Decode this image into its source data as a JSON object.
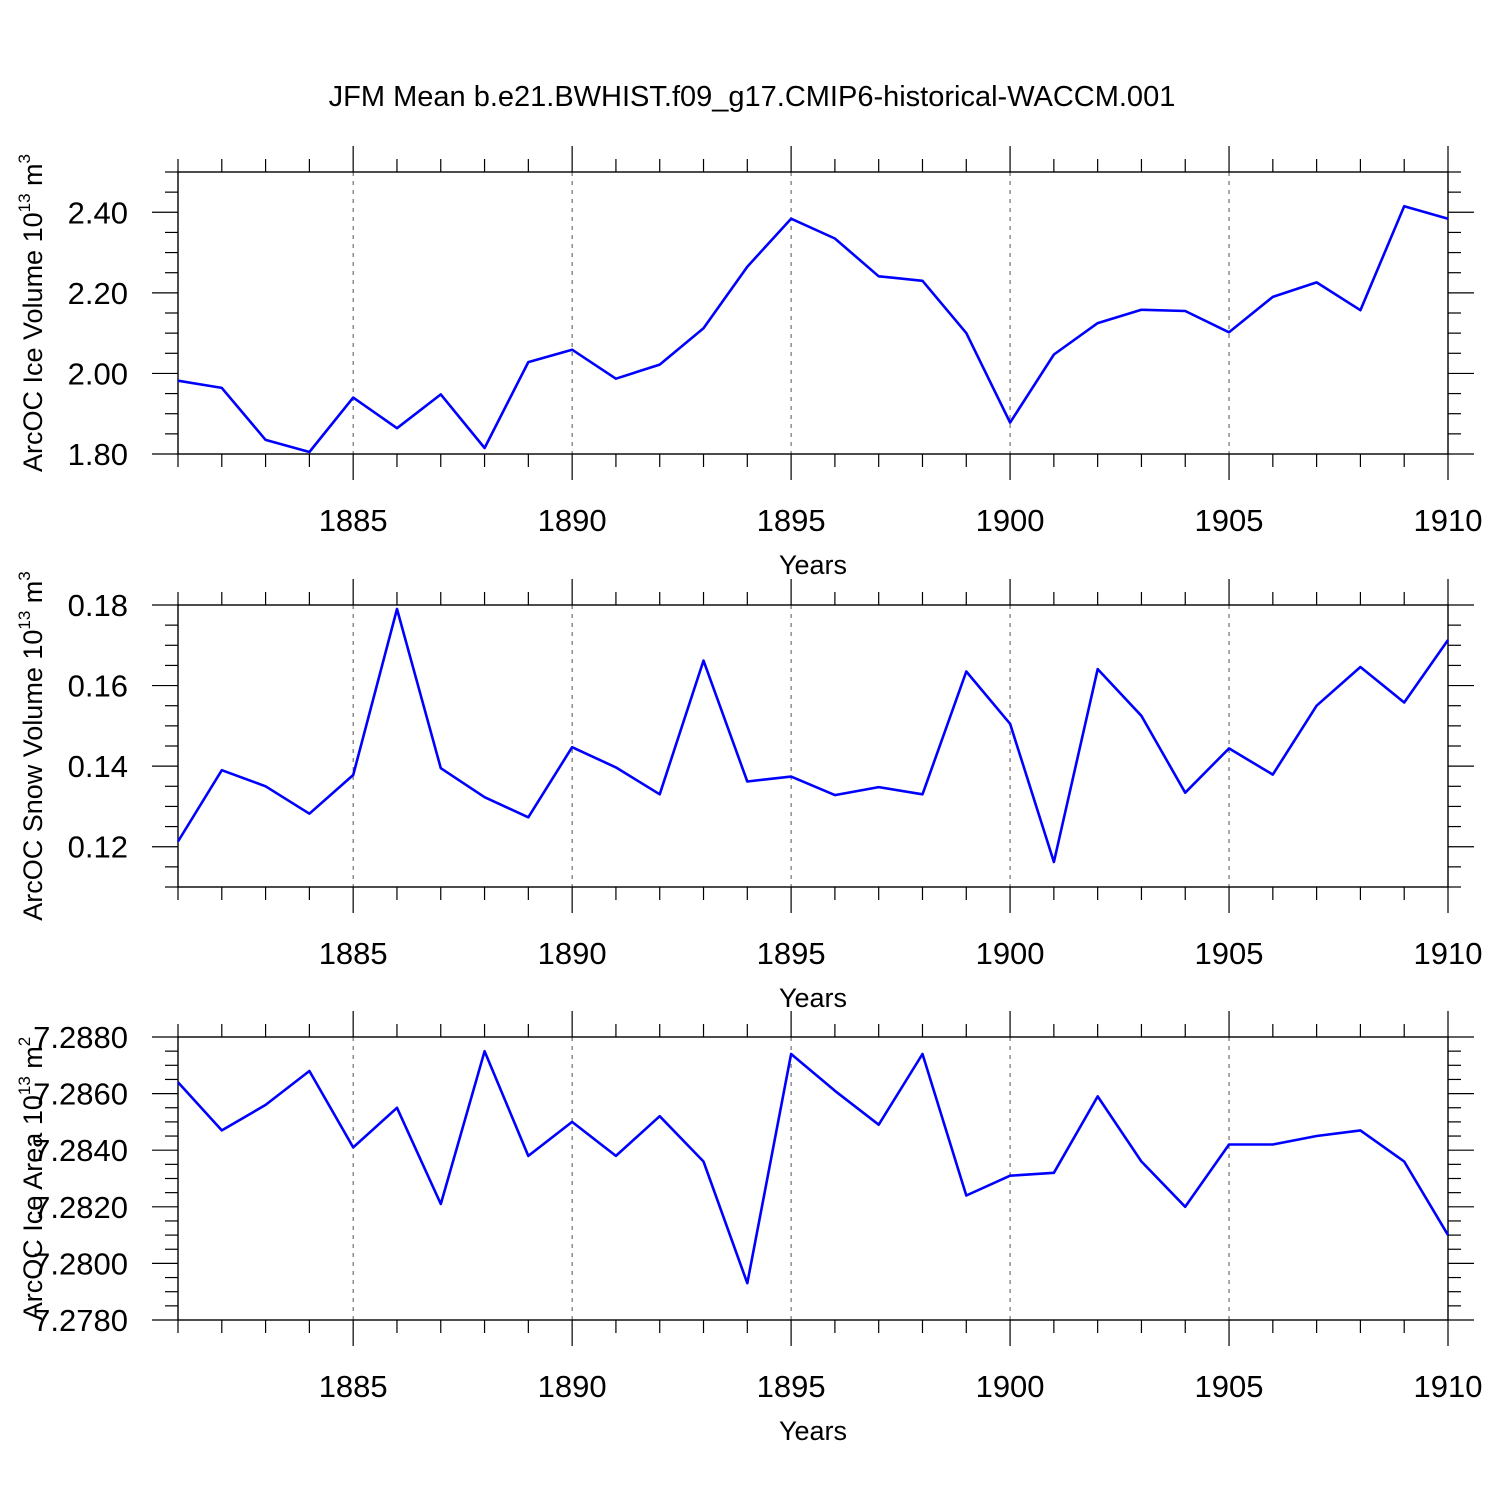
{
  "chart_data": {
    "type": "line",
    "title": "JFM Mean b.e21.BWHIST.f09_g17.CMIP6-historical-WACCM.001",
    "series_color": "#0000ff",
    "panels": [
      {
        "name": "ice-volume",
        "ylabel_main": "ArcOC Ice Volume 10",
        "ylabel_exp": "13",
        "ylabel_unit": " m",
        "ylabel_unit_exp": "3",
        "xlabel": "Years",
        "xlim": [
          1881,
          1910
        ],
        "ylim": [
          1.8,
          2.5
        ],
        "yticks": [
          1.8,
          2.0,
          2.2,
          2.4
        ],
        "ytick_labels": [
          "1.80",
          "2.00",
          "2.20",
          "2.40"
        ],
        "yminor_step": 0.05,
        "xticks": [
          1885,
          1890,
          1895,
          1900,
          1905,
          1910
        ],
        "xtick_labels": [
          "1885",
          "1890",
          "1895",
          "1900",
          "1905",
          "1910"
        ],
        "x": [
          1881,
          1882,
          1883,
          1884,
          1885,
          1886,
          1887,
          1888,
          1889,
          1890,
          1891,
          1892,
          1893,
          1894,
          1895,
          1896,
          1897,
          1898,
          1899,
          1900,
          1901,
          1902,
          1903,
          1904,
          1905,
          1906,
          1907,
          1908,
          1909,
          1910
        ],
        "values": [
          1.982,
          1.964,
          1.835,
          1.805,
          1.94,
          1.864,
          1.948,
          1.815,
          2.028,
          2.059,
          1.987,
          2.022,
          2.112,
          2.265,
          2.384,
          2.335,
          2.241,
          2.23,
          2.1,
          1.878,
          2.047,
          2.125,
          2.158,
          2.155,
          2.102,
          2.19,
          2.226,
          2.157,
          2.415,
          2.384
        ]
      },
      {
        "name": "snow-volume",
        "ylabel_main": "ArcOC Snow Volume 10",
        "ylabel_exp": "13",
        "ylabel_unit": " m",
        "ylabel_unit_exp": "3",
        "xlabel": "Years",
        "xlim": [
          1881,
          1910
        ],
        "ylim": [
          0.11,
          0.18
        ],
        "yticks": [
          0.12,
          0.14,
          0.16,
          0.18
        ],
        "ytick_labels": [
          "0.12",
          "0.14",
          "0.16",
          "0.18"
        ],
        "yminor_step": 0.005,
        "xticks": [
          1885,
          1890,
          1895,
          1900,
          1905,
          1910
        ],
        "xtick_labels": [
          "1885",
          "1890",
          "1895",
          "1900",
          "1905",
          "1910"
        ],
        "x": [
          1881,
          1882,
          1883,
          1884,
          1885,
          1886,
          1887,
          1888,
          1889,
          1890,
          1891,
          1892,
          1893,
          1894,
          1895,
          1896,
          1897,
          1898,
          1899,
          1900,
          1901,
          1902,
          1903,
          1904,
          1905,
          1906,
          1907,
          1908,
          1909,
          1910
        ],
        "values": [
          0.1213,
          0.139,
          0.135,
          0.1282,
          0.1378,
          0.179,
          0.1395,
          0.1323,
          0.1273,
          0.1447,
          0.1397,
          0.133,
          0.1662,
          0.1362,
          0.1374,
          0.1328,
          0.1348,
          0.133,
          0.1635,
          0.1505,
          0.1162,
          0.1641,
          0.1525,
          0.1334,
          0.1444,
          0.1379,
          0.155,
          0.1646,
          0.1558,
          0.1713
        ]
      },
      {
        "name": "ice-area",
        "ylabel_main": "ArcOC Ice Area 10",
        "ylabel_exp": "13",
        "ylabel_unit": " m",
        "ylabel_unit_exp": "2",
        "xlabel": "Years",
        "xlim": [
          1881,
          1910
        ],
        "ylim": [
          7.278,
          7.288
        ],
        "yticks": [
          7.278,
          7.28,
          7.282,
          7.284,
          7.286,
          7.288
        ],
        "ytick_labels": [
          "7.2780",
          "7.2800",
          "7.2820",
          "7.2840",
          "7.2860",
          "7.2880"
        ],
        "yminor_step": 0.0005,
        "xticks": [
          1885,
          1890,
          1895,
          1900,
          1905,
          1910
        ],
        "xtick_labels": [
          "1885",
          "1890",
          "1895",
          "1900",
          "1905",
          "1910"
        ],
        "x": [
          1881,
          1882,
          1883,
          1884,
          1885,
          1886,
          1887,
          1888,
          1889,
          1890,
          1891,
          1892,
          1893,
          1894,
          1895,
          1896,
          1897,
          1898,
          1899,
          1900,
          1901,
          1902,
          1903,
          1904,
          1905,
          1906,
          1907,
          1908,
          1909,
          1910
        ],
        "values": [
          7.2864,
          7.2847,
          7.2856,
          7.2868,
          7.2841,
          7.2855,
          7.2821,
          7.2875,
          7.2838,
          7.285,
          7.2838,
          7.2852,
          7.2836,
          7.2793,
          7.2874,
          7.2861,
          7.2849,
          7.2874,
          7.2824,
          7.2831,
          7.2832,
          7.2859,
          7.2836,
          7.282,
          7.2842,
          7.2842,
          7.2845,
          7.2847,
          7.2836,
          7.281
        ]
      }
    ]
  }
}
